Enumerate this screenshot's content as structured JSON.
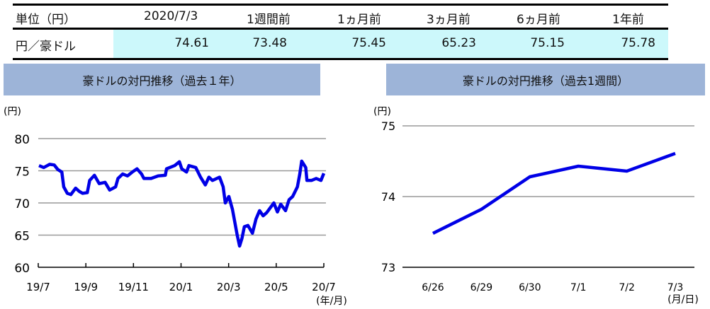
{
  "table": {
    "headers": [
      "単位（円）",
      "2020/7/3",
      "1週間前",
      "1ヵ月前",
      "3ヵ月前",
      "6ヵ月前",
      "1年前"
    ],
    "row_label": "円／豪ドル",
    "values": [
      "74.61",
      "73.48",
      "75.45",
      "65.23",
      "75.15",
      "75.78"
    ]
  },
  "colors": {
    "line": "#0000e6",
    "header_bg": "#9db4d8",
    "cell_bg": "#ccf8fb"
  },
  "chart_data": [
    {
      "type": "line",
      "title": "豪ドルの対円推移（過去１年）",
      "ylabel": "(円)",
      "xlabel": "(年/月)",
      "ylim": [
        60,
        80
      ],
      "yticks": [
        "60",
        "65",
        "70",
        "75",
        "80"
      ],
      "xticks": [
        "19/7",
        "19/9",
        "19/11",
        "20/1",
        "20/3",
        "20/5",
        "20/7"
      ],
      "x_unit": "months since 19/7",
      "grid": true,
      "x": [
        0.03,
        0.23,
        0.48,
        0.67,
        0.82,
        0.99,
        1.07,
        1.22,
        1.37,
        1.57,
        1.72,
        1.86,
        2.06,
        2.16,
        2.36,
        2.56,
        2.81,
        3.0,
        3.25,
        3.35,
        3.55,
        3.75,
        3.95,
        4.15,
        4.34,
        4.44,
        4.74,
        5.04,
        5.34,
        5.39,
        5.73,
        5.93,
        6.03,
        6.23,
        6.33,
        6.62,
        6.82,
        7.02,
        7.17,
        7.32,
        7.62,
        7.77,
        7.86,
        8.01,
        8.16,
        8.26,
        8.36,
        8.46,
        8.56,
        8.66,
        8.81,
        9.0,
        9.15,
        9.3,
        9.45,
        9.6,
        9.9,
        10.05,
        10.19,
        10.39,
        10.54,
        10.69,
        10.89,
        10.99,
        11.07,
        11.24,
        11.29,
        11.48,
        11.68,
        11.88,
        12.0
      ],
      "y": [
        75.8,
        75.5,
        76.0,
        75.9,
        75.2,
        74.8,
        72.5,
        71.5,
        71.3,
        72.3,
        71.8,
        71.5,
        71.6,
        73.5,
        74.3,
        73.0,
        73.2,
        72.0,
        72.5,
        73.8,
        74.5,
        74.2,
        74.8,
        75.3,
        74.5,
        73.8,
        73.8,
        74.2,
        74.3,
        75.3,
        75.8,
        76.4,
        75.3,
        74.8,
        75.8,
        75.5,
        74.0,
        72.8,
        74.0,
        73.5,
        74.0,
        72.5,
        70.0,
        71.0,
        69.0,
        67.0,
        65.0,
        63.3,
        64.5,
        66.3,
        66.5,
        65.3,
        67.5,
        68.8,
        68.0,
        68.5,
        70.0,
        68.6,
        69.8,
        68.8,
        70.5,
        71.0,
        72.5,
        74.5,
        76.5,
        75.5,
        73.5,
        73.5,
        73.8,
        73.5,
        74.6
      ]
    },
    {
      "type": "line",
      "title": "豪ドルの対円推移（過去1週間）",
      "ylabel": "(円)",
      "xlabel": "(月/日)",
      "ylim": [
        73,
        75
      ],
      "yticks": [
        "73",
        "74",
        "75"
      ],
      "grid": true,
      "categories": [
        "6/26",
        "6/29",
        "6/30",
        "7/1",
        "7/2",
        "7/3"
      ],
      "values": [
        73.48,
        73.82,
        74.28,
        74.43,
        74.36,
        74.61
      ]
    }
  ]
}
